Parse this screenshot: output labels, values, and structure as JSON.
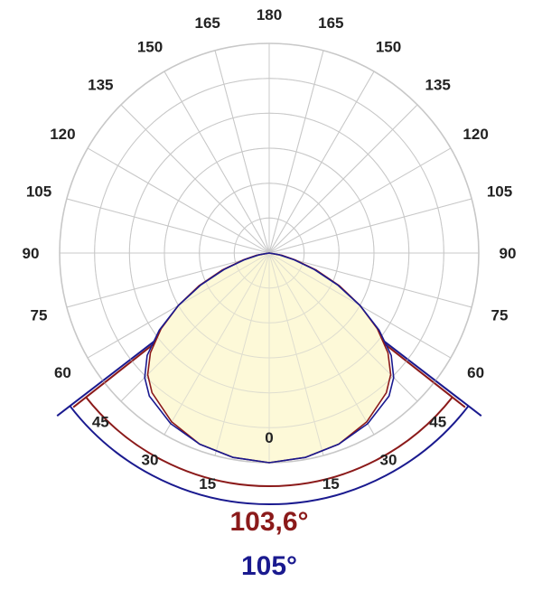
{
  "chart_data": {
    "type": "polar",
    "angle_ticks": [
      0,
      15,
      30,
      45,
      60,
      75,
      90,
      105,
      120,
      135,
      150,
      165,
      180
    ],
    "radial_rings": 6,
    "grid": true,
    "colors": {
      "grid": "#c8c8c8",
      "fill": "#fdf9d8",
      "series_red": "#8b1a1a",
      "series_blue": "#1a1a8f"
    },
    "series": [
      {
        "color": "#8b1a1a",
        "points": [
          [
            0,
            1.0
          ],
          [
            10,
            0.99
          ],
          [
            20,
            0.97
          ],
          [
            30,
            0.93
          ],
          [
            40,
            0.87
          ],
          [
            45,
            0.82
          ],
          [
            50,
            0.74
          ],
          [
            55,
            0.63
          ],
          [
            60,
            0.5
          ],
          [
            65,
            0.37
          ],
          [
            70,
            0.24
          ],
          [
            75,
            0.13
          ],
          [
            80,
            0.06
          ],
          [
            90,
            0.0
          ]
        ]
      },
      {
        "color": "#1a1a8f",
        "points": [
          [
            0,
            1.0
          ],
          [
            10,
            0.99
          ],
          [
            20,
            0.97
          ],
          [
            30,
            0.94
          ],
          [
            40,
            0.89
          ],
          [
            45,
            0.84
          ],
          [
            50,
            0.76
          ],
          [
            55,
            0.64
          ],
          [
            60,
            0.5
          ],
          [
            65,
            0.36
          ],
          [
            70,
            0.23
          ],
          [
            75,
            0.12
          ],
          [
            80,
            0.05
          ],
          [
            90,
            0.0
          ]
        ]
      }
    ],
    "beam_angles": [
      {
        "label": "103,6°",
        "angle": 103.6,
        "color": "#8b1a1a"
      },
      {
        "label": "105°",
        "angle": 105,
        "color": "#1a1a8f"
      }
    ]
  }
}
